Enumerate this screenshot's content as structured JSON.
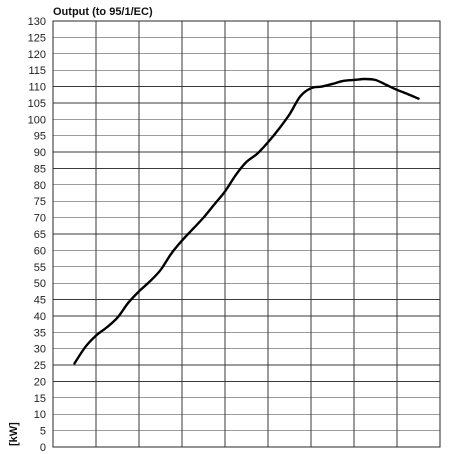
{
  "chart_data": {
    "type": "line",
    "title": "Output (to 95/1/EC)",
    "xlabel": "",
    "ylabel": "[kW]",
    "ylim": [
      0,
      130
    ],
    "yticks": [
      0,
      5,
      10,
      15,
      20,
      25,
      30,
      35,
      40,
      45,
      50,
      55,
      60,
      65,
      70,
      75,
      80,
      85,
      90,
      95,
      100,
      105,
      110,
      115,
      120,
      125,
      130
    ],
    "x_gridlines": 9,
    "xlim": [
      0,
      9
    ],
    "grid": true,
    "series": [
      {
        "x": [
          0.5,
          0.75,
          1.0,
          1.25,
          1.5,
          1.75,
          2.0,
          2.25,
          2.5,
          2.75,
          3.0,
          3.25,
          3.5,
          3.75,
          4.0,
          4.25,
          4.5,
          4.75,
          5.0,
          5.25,
          5.5,
          5.75,
          6.0,
          6.25,
          6.5,
          6.75,
          7.0,
          7.25,
          7.5,
          7.75,
          8.0,
          8.25,
          8.5
        ],
        "values": [
          25.5,
          30.5,
          34,
          36.5,
          39.5,
          44,
          47.5,
          50.5,
          54,
          59,
          63,
          66.5,
          70,
          74,
          78,
          83,
          87,
          89.5,
          93,
          97,
          101.5,
          107,
          109.5,
          110,
          110.8,
          111.7,
          112,
          112.3,
          112,
          110.5,
          109,
          107.7,
          106.3
        ]
      }
    ]
  }
}
